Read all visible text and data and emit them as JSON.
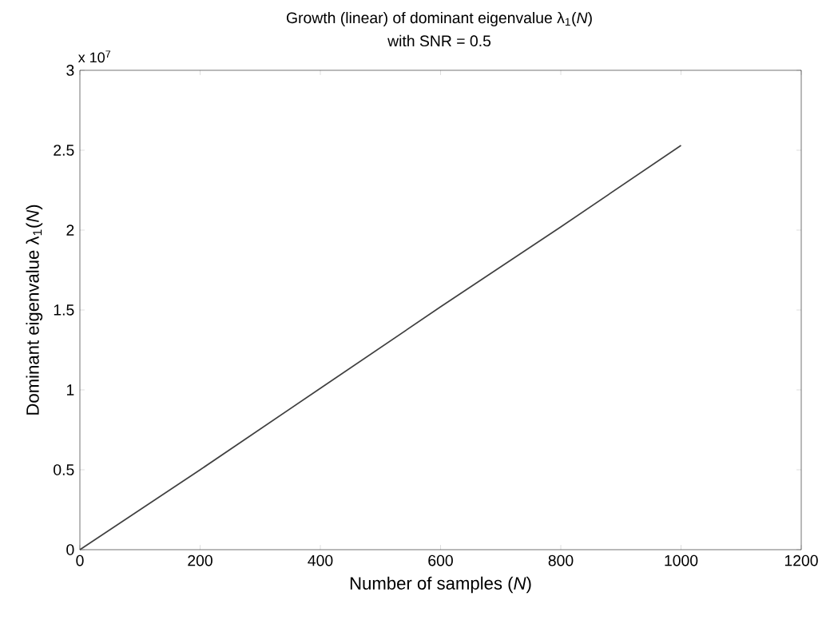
{
  "chart_data": {
    "type": "line",
    "title": "Growth (linear) of dominant eigenvalue λ$_{1}$(*N*)",
    "subtitle": "with SNR = 0.5",
    "xlabel": "Number of samples (*N*)",
    "ylabel": "Dominant eigenvalue λ$_{1}$(*N*)",
    "x": [
      0,
      200,
      400,
      600,
      800,
      1000
    ],
    "values": [
      0,
      0.5,
      1.01,
      1.52,
      2.02,
      2.53
    ],
    "color": "#404040",
    "xlim": [
      0,
      1200
    ],
    "ylim": [
      0,
      3
    ],
    "xticks": [
      0,
      200,
      400,
      600,
      800,
      1000,
      1200
    ],
    "yticks": [
      0,
      0.5,
      1,
      1.5,
      2,
      2.5,
      3
    ],
    "annotations": [
      "x 10$^{7}$"
    ],
    "grid": false
  }
}
